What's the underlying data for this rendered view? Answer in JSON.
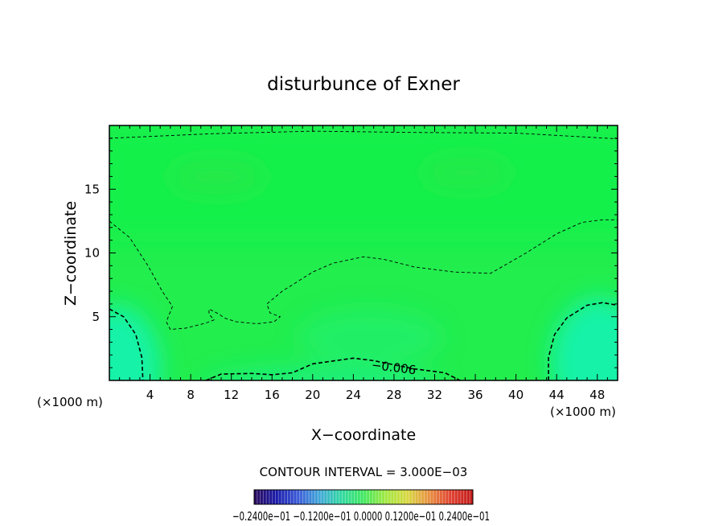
{
  "chart_data": {
    "type": "heatmap",
    "title": "disturbunce of Exner",
    "xlabel": "X−coordinate",
    "ylabel": "Z−coordinate",
    "x_unit_left": "(×1000 m)",
    "x_unit_right": "(×1000 m)",
    "xlim": [
      0,
      50
    ],
    "ylim": [
      0,
      20
    ],
    "x_ticks": [
      4,
      8,
      12,
      16,
      20,
      24,
      28,
      32,
      36,
      40,
      44,
      48
    ],
    "x_tick_labels": [
      "4",
      "8",
      "12",
      "16",
      "20",
      "24",
      "28",
      "32",
      "36",
      "40",
      "44",
      "48"
    ],
    "y_ticks": [
      5,
      10,
      15
    ],
    "y_tick_labels": [
      "5",
      "10",
      "15"
    ],
    "contour_interval_text": "CONTOUR INTERVAL = 3.000E−03",
    "contour_interval": 0.003,
    "contour_label": "−0.006",
    "colorbar": {
      "min": -0.024,
      "max": 0.024,
      "labels_text": "−0.2400e−01 −0.1200e−01 0.0000 0.1200e−01 0.2400e−01",
      "colors": [
        "#2a0a5a",
        "#1a1aa8",
        "#3a5ad8",
        "#40a8d8",
        "#30d8a0",
        "#40e860",
        "#a0e840",
        "#d8d840",
        "#e89040",
        "#e04030",
        "#c01818"
      ]
    },
    "contours": [
      {
        "level": -0.003,
        "style": "thin-dashed",
        "points": [
          [
            0,
            19.0
          ],
          [
            10,
            19.35
          ],
          [
            20,
            19.55
          ],
          [
            30,
            19.45
          ],
          [
            40,
            19.4
          ],
          [
            50,
            18.95
          ]
        ]
      },
      {
        "level": -0.003,
        "style": "thin-dashed",
        "points": [
          [
            0,
            12.5
          ],
          [
            2,
            11.2
          ],
          [
            3.8,
            9.0
          ],
          [
            5.2,
            7.0
          ],
          [
            6.2,
            5.8
          ],
          [
            5.6,
            4.6
          ],
          [
            6.0,
            4.0
          ],
          [
            7.5,
            4.1
          ],
          [
            9.5,
            4.5
          ],
          [
            10.3,
            4.75
          ],
          [
            9.8,
            5.2
          ],
          [
            9.8,
            5.6
          ],
          [
            10.8,
            5.2
          ],
          [
            11.3,
            4.9
          ],
          [
            12.5,
            4.6
          ],
          [
            14.5,
            4.45
          ],
          [
            16.2,
            4.6
          ],
          [
            16.8,
            5.0
          ],
          [
            15.8,
            5.3
          ],
          [
            15.5,
            6.0
          ],
          [
            17,
            7.0
          ],
          [
            20,
            8.5
          ],
          [
            22,
            9.2
          ],
          [
            25,
            9.7
          ],
          [
            27,
            9.5
          ],
          [
            30,
            8.9
          ],
          [
            34,
            8.5
          ],
          [
            37.5,
            8.4
          ],
          [
            41,
            10.0
          ],
          [
            44,
            11.5
          ],
          [
            46.5,
            12.4
          ],
          [
            48.5,
            12.6
          ],
          [
            50,
            12.6
          ]
        ]
      },
      {
        "level": -0.006,
        "style": "thick-dashed",
        "points": [
          [
            0,
            5.6
          ],
          [
            1.4,
            5.0
          ],
          [
            2.6,
            3.6
          ],
          [
            3.2,
            1.8
          ],
          [
            3.3,
            0
          ]
        ]
      },
      {
        "level": -0.006,
        "style": "thick-dashed",
        "points": [
          [
            9.5,
            0
          ],
          [
            11,
            0.5
          ],
          [
            14,
            0.55
          ],
          [
            16,
            0.45
          ],
          [
            18,
            0.6
          ],
          [
            20,
            1.3
          ],
          [
            24,
            1.75
          ],
          [
            26,
            1.55
          ],
          [
            30,
            0.9
          ],
          [
            33,
            0.6
          ],
          [
            34.5,
            0
          ]
        ]
      },
      {
        "level": -0.006,
        "style": "thick-dashed",
        "points": [
          [
            43.2,
            0
          ],
          [
            43.2,
            1.8
          ],
          [
            43.8,
            3.6
          ],
          [
            45,
            4.9
          ],
          [
            47,
            5.9
          ],
          [
            48.5,
            6.1
          ],
          [
            50,
            5.9
          ]
        ]
      }
    ]
  }
}
